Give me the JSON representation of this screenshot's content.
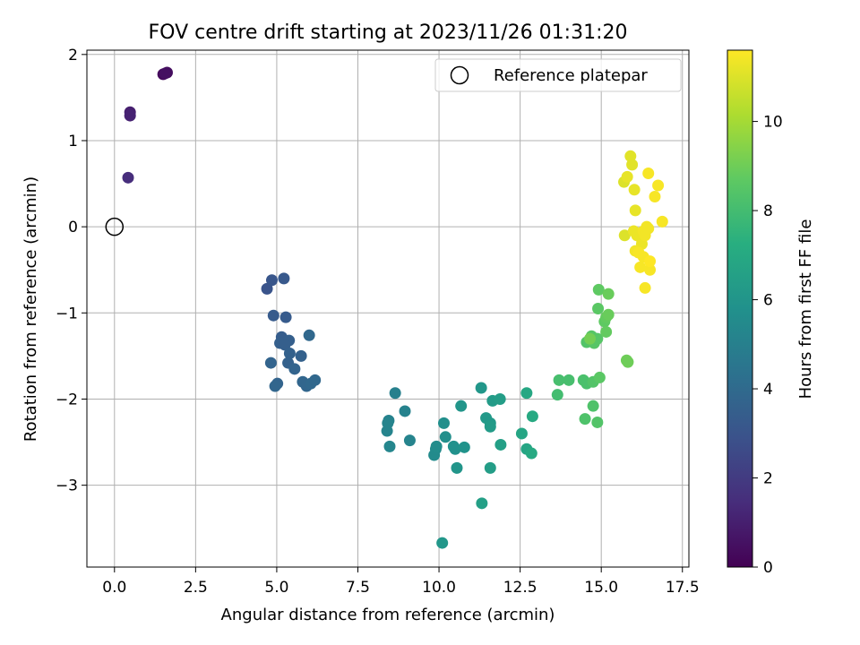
{
  "chart_data": {
    "type": "scatter",
    "title": "FOV centre drift starting at 2023/11/26 01:31:20",
    "xlabel": "Angular distance from reference (arcmin)",
    "ylabel": "Rotation from reference (arcmin)",
    "xlim": [
      -0.85,
      17.7
    ],
    "ylim": [
      -3.95,
      2.05
    ],
    "x_ticks": [
      "0.0",
      "2.5",
      "5.0",
      "7.5",
      "10.0",
      "12.5",
      "15.0",
      "17.5"
    ],
    "x_tick_values": [
      0,
      2.5,
      5,
      7.5,
      10,
      12.5,
      15,
      17.5
    ],
    "y_ticks": [
      "2",
      "1",
      "0",
      "−1",
      "−2",
      "−3"
    ],
    "y_tick_values": [
      2,
      1,
      0,
      -1,
      -2,
      -3
    ],
    "grid": true,
    "legend": {
      "position": "top-right",
      "entries": [
        "Reference platepar"
      ]
    },
    "reference_point": {
      "x": 0,
      "y": 0
    },
    "colorbar": {
      "label": "Hours from first FF file",
      "range": [
        0,
        11.6
      ],
      "ticks": [
        "0",
        "2",
        "4",
        "6",
        "8",
        "10"
      ],
      "tick_values": [
        0,
        2,
        4,
        6,
        8,
        10
      ],
      "colormap": "viridis"
    },
    "points": [
      [
        1.5,
        1.77,
        0.3
      ],
      [
        1.62,
        1.79,
        0.4
      ],
      [
        1.56,
        1.78,
        0.5
      ],
      [
        0.48,
        1.33,
        1.0
      ],
      [
        0.48,
        1.29,
        1.1
      ],
      [
        0.42,
        0.57,
        1.5
      ],
      [
        4.7,
        -0.72,
        3.0
      ],
      [
        4.85,
        -0.62,
        3.1
      ],
      [
        5.22,
        -0.6,
        3.2
      ],
      [
        4.9,
        -1.03,
        3.3
      ],
      [
        5.28,
        -1.05,
        3.3
      ],
      [
        5.15,
        -1.28,
        3.4
      ],
      [
        5.2,
        -1.33,
        3.4
      ],
      [
        5.1,
        -1.35,
        3.5
      ],
      [
        5.38,
        -1.32,
        3.5
      ],
      [
        5.25,
        -1.37,
        3.5
      ],
      [
        5.4,
        -1.47,
        3.6
      ],
      [
        5.75,
        -1.5,
        3.6
      ],
      [
        5.35,
        -1.58,
        3.6
      ],
      [
        5.55,
        -1.65,
        3.7
      ],
      [
        4.82,
        -1.58,
        3.7
      ],
      [
        5.02,
        -1.82,
        3.7
      ],
      [
        4.95,
        -1.85,
        3.8
      ],
      [
        5.8,
        -1.8,
        3.8
      ],
      [
        5.92,
        -1.85,
        3.8
      ],
      [
        6.05,
        -1.82,
        3.9
      ],
      [
        6.18,
        -1.78,
        3.9
      ],
      [
        6.0,
        -1.26,
        3.9
      ],
      [
        8.65,
        -1.93,
        5.0
      ],
      [
        8.95,
        -2.14,
        5.1
      ],
      [
        8.45,
        -2.25,
        5.1
      ],
      [
        8.42,
        -2.28,
        5.2
      ],
      [
        8.4,
        -2.37,
        5.2
      ],
      [
        9.1,
        -2.48,
        5.2
      ],
      [
        8.48,
        -2.55,
        5.3
      ],
      [
        9.85,
        -2.65,
        5.5
      ],
      [
        9.9,
        -2.58,
        5.5
      ],
      [
        9.92,
        -2.55,
        5.6
      ],
      [
        10.15,
        -2.28,
        5.7
      ],
      [
        10.2,
        -2.44,
        5.7
      ],
      [
        10.45,
        -2.55,
        5.8
      ],
      [
        10.5,
        -2.58,
        5.8
      ],
      [
        10.78,
        -2.56,
        5.9
      ],
      [
        10.55,
        -2.8,
        6.0
      ],
      [
        10.68,
        -2.08,
        6.0
      ],
      [
        10.1,
        -3.67,
        6.1
      ],
      [
        11.3,
        -1.87,
        6.1
      ],
      [
        11.45,
        -2.22,
        6.2
      ],
      [
        11.58,
        -2.28,
        6.2
      ],
      [
        11.58,
        -2.32,
        6.3
      ],
      [
        11.65,
        -2.02,
        6.3
      ],
      [
        11.88,
        -2.0,
        6.4
      ],
      [
        11.58,
        -2.8,
        6.4
      ],
      [
        11.32,
        -3.21,
        6.5
      ],
      [
        11.9,
        -2.53,
        6.5
      ],
      [
        12.55,
        -2.4,
        6.8
      ],
      [
        12.7,
        -2.58,
        6.8
      ],
      [
        12.7,
        -1.93,
        6.9
      ],
      [
        12.85,
        -2.63,
        7.0
      ],
      [
        12.88,
        -2.2,
        7.0
      ],
      [
        13.65,
        -1.95,
        8.0
      ],
      [
        13.7,
        -1.78,
        8.1
      ],
      [
        14.0,
        -1.78,
        8.1
      ],
      [
        14.45,
        -1.78,
        8.2
      ],
      [
        14.55,
        -1.82,
        8.2
      ],
      [
        14.5,
        -2.23,
        8.3
      ],
      [
        14.75,
        -2.08,
        8.3
      ],
      [
        14.88,
        -2.27,
        8.4
      ],
      [
        14.75,
        -1.8,
        8.4
      ],
      [
        14.55,
        -1.34,
        8.4
      ],
      [
        14.7,
        -1.27,
        8.5
      ],
      [
        14.78,
        -1.35,
        8.5
      ],
      [
        14.88,
        -1.3,
        8.5
      ],
      [
        14.95,
        -1.75,
        8.6
      ],
      [
        14.9,
        -0.95,
        8.6
      ],
      [
        14.92,
        -0.73,
        8.7
      ],
      [
        15.1,
        -1.1,
        8.7
      ],
      [
        15.15,
        -1.05,
        8.8
      ],
      [
        15.15,
        -1.22,
        8.8
      ],
      [
        15.22,
        -0.78,
        8.9
      ],
      [
        15.22,
        -1.02,
        8.9
      ],
      [
        15.78,
        -1.55,
        9.0
      ],
      [
        15.82,
        -1.57,
        9.0
      ],
      [
        14.65,
        -1.3,
        9.1
      ],
      [
        15.7,
        0.52,
        11.0
      ],
      [
        15.72,
        -0.1,
        11.0
      ],
      [
        15.9,
        0.82,
        11.1
      ],
      [
        15.95,
        0.72,
        11.1
      ],
      [
        16.02,
        0.43,
        11.2
      ],
      [
        16.05,
        0.19,
        11.2
      ],
      [
        15.8,
        0.58,
        11.2
      ],
      [
        16.0,
        -0.05,
        11.3
      ],
      [
        16.1,
        -0.1,
        11.3
      ],
      [
        16.2,
        -0.12,
        11.3
      ],
      [
        16.25,
        -0.2,
        11.3
      ],
      [
        16.3,
        -0.05,
        11.4
      ],
      [
        16.35,
        -0.1,
        11.4
      ],
      [
        16.4,
        0.0,
        11.4
      ],
      [
        16.45,
        -0.02,
        11.4
      ],
      [
        16.05,
        -0.28,
        11.4
      ],
      [
        16.15,
        -0.3,
        11.5
      ],
      [
        16.3,
        -0.35,
        11.5
      ],
      [
        16.2,
        -0.47,
        11.5
      ],
      [
        16.5,
        -0.5,
        11.5
      ],
      [
        16.35,
        -0.71,
        11.5
      ],
      [
        16.45,
        0.62,
        11.5
      ],
      [
        16.65,
        0.35,
        11.5
      ],
      [
        16.75,
        0.48,
        11.5
      ],
      [
        16.88,
        0.06,
        11.5
      ],
      [
        16.5,
        -0.4,
        11.6
      ]
    ]
  }
}
